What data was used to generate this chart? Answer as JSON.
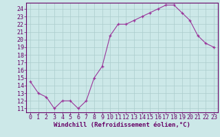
{
  "x": [
    0,
    1,
    2,
    3,
    4,
    5,
    6,
    7,
    8,
    9,
    10,
    11,
    12,
    13,
    14,
    15,
    16,
    17,
    18,
    19,
    20,
    21,
    22,
    23
  ],
  "y": [
    14.5,
    13.0,
    12.5,
    11.0,
    12.0,
    12.0,
    11.0,
    12.0,
    15.0,
    16.5,
    20.5,
    22.0,
    22.0,
    22.5,
    23.0,
    23.5,
    24.0,
    24.5,
    24.5,
    23.5,
    22.5,
    20.5,
    19.5,
    19.0
  ],
  "line_color": "#993399",
  "marker": "+",
  "bg_color": "#cce8e8",
  "grid_color": "#aacccc",
  "xlabel": "Windchill (Refroidissement éolien,°C)",
  "ylabel_ticks": [
    11,
    12,
    13,
    14,
    15,
    16,
    17,
    18,
    19,
    20,
    21,
    22,
    23,
    24
  ],
  "xlim": [
    -0.5,
    23.5
  ],
  "ylim": [
    10.5,
    24.8
  ],
  "xticks": [
    0,
    1,
    2,
    3,
    4,
    5,
    6,
    7,
    8,
    9,
    10,
    11,
    12,
    13,
    14,
    15,
    16,
    17,
    18,
    19,
    20,
    21,
    22,
    23
  ],
  "axis_label_color": "#660066",
  "tick_color": "#660066",
  "font_size_ticks": 6.0,
  "font_size_xlabel": 6.5,
  "spine_color": "#660066",
  "linewidth": 0.8,
  "markersize": 3.5
}
